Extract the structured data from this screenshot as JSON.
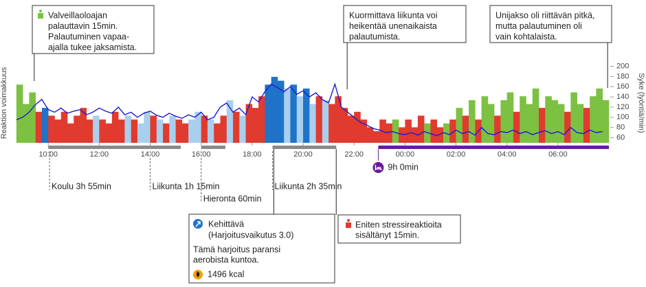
{
  "chart_data": {
    "type": "line",
    "y_label": "Reaktion voimakkuus",
    "y2_label": "Syke (lyöntiä/min)",
    "xlim": [
      8.7,
      32.0
    ],
    "xticks": [
      {
        "value": 10,
        "label": "10:00"
      },
      {
        "value": 12,
        "label": "12:00"
      },
      {
        "value": 14,
        "label": "14:00"
      },
      {
        "value": 16,
        "label": "16:00"
      },
      {
        "value": 18,
        "label": "18:00"
      },
      {
        "value": 20,
        "label": "20:00"
      },
      {
        "value": 22,
        "label": "22:00"
      },
      {
        "value": 24,
        "label": "00:00"
      },
      {
        "value": 26,
        "label": "02:00"
      },
      {
        "value": 28,
        "label": "04:00"
      },
      {
        "value": 30,
        "label": "06:00"
      }
    ],
    "ylim": [
      0,
      1
    ],
    "y2lim": [
      50,
      202
    ],
    "y2ticks": [
      60,
      80,
      100,
      120,
      140,
      160,
      180,
      200
    ],
    "x": [
      8.75,
      9.0,
      9.25,
      9.5,
      9.75,
      10.0,
      10.25,
      10.5,
      10.75,
      11.0,
      11.25,
      11.5,
      11.75,
      12.0,
      12.25,
      12.5,
      12.75,
      13.0,
      13.25,
      13.5,
      13.75,
      14.0,
      14.25,
      14.5,
      14.75,
      15.0,
      15.25,
      15.5,
      15.75,
      16.0,
      16.25,
      16.5,
      16.75,
      17.0,
      17.25,
      17.5,
      17.75,
      18.0,
      18.25,
      18.5,
      18.75,
      19.0,
      19.25,
      19.5,
      19.75,
      20.0,
      20.25,
      20.5,
      20.75,
      21.0,
      21.25,
      21.5,
      21.75,
      22.0,
      22.25,
      22.5,
      22.75,
      23.0,
      23.25,
      23.5,
      23.75,
      24.0,
      24.25,
      24.5,
      24.75,
      25.0,
      25.25,
      25.5,
      25.75,
      26.0,
      26.25,
      26.5,
      26.75,
      27.0,
      27.25,
      27.5,
      27.75,
      28.0,
      28.25,
      28.5,
      28.75,
      29.0,
      29.25,
      29.5,
      29.75,
      30.0,
      30.25,
      30.5,
      30.75,
      31.0,
      31.25,
      31.5,
      31.75
    ],
    "bar_width": 0.25,
    "bars": {
      "values": [
        0.75,
        0.5,
        0.65,
        0.4,
        0.45,
        0.35,
        0.3,
        0.4,
        0.25,
        0.35,
        0.45,
        0.3,
        0.35,
        0.3,
        0.25,
        0.4,
        0.3,
        0.35,
        0.3,
        0.25,
        0.4,
        0.35,
        0.3,
        0.25,
        0.35,
        0.3,
        0.25,
        0.3,
        0.4,
        0.35,
        0.3,
        0.25,
        0.35,
        0.55,
        0.4,
        0.35,
        0.5,
        0.45,
        0.6,
        0.75,
        0.85,
        0.8,
        0.7,
        0.75,
        0.6,
        0.7,
        0.5,
        0.6,
        0.55,
        0.5,
        0.6,
        0.45,
        0.35,
        0.4,
        0.3,
        0.2,
        0.15,
        0.3,
        0.25,
        0.3,
        0.2,
        0.3,
        0.2,
        0.35,
        0.25,
        0.3,
        0.2,
        0.25,
        0.3,
        0.45,
        0.35,
        0.55,
        0.3,
        0.6,
        0.5,
        0.35,
        0.55,
        0.65,
        0.4,
        0.6,
        0.5,
        0.7,
        0.45,
        0.6,
        0.55,
        0.5,
        0.4,
        0.65,
        0.5,
        0.45,
        0.6,
        0.7,
        0.55
      ],
      "colors": [
        "#7cc142",
        "#7cc142",
        "#7cc142",
        "#e03b2e",
        "#1f73c9",
        "#e03b2e",
        "#e03b2e",
        "#e03b2e",
        "#e03b2e",
        "#e03b2e",
        "#e03b2e",
        "#e03b2e",
        "#a9cfee",
        "#e03b2e",
        "#e03b2e",
        "#e03b2e",
        "#e03b2e",
        "#a9cfee",
        "#e03b2e",
        "#a9cfee",
        "#a9cfee",
        "#e03b2e",
        "#a9cfee",
        "#e03b2e",
        "#a9cfee",
        "#e03b2e",
        "#e03b2e",
        "#a9cfee",
        "#a9cfee",
        "#e03b2e",
        "#a9cfee",
        "#e03b2e",
        "#e03b2e",
        "#a9cfee",
        "#e03b2e",
        "#a9cfee",
        "#e03b2e",
        "#e03b2e",
        "#e03b2e",
        "#1f73c9",
        "#1f73c9",
        "#1f73c9",
        "#a9cfee",
        "#1f73c9",
        "#a9cfee",
        "#1f73c9",
        "#a9cfee",
        "#e03b2e",
        "#a9cfee",
        "#e03b2e",
        "#e03b2e",
        "#e03b2e",
        "#e03b2e",
        "#e03b2e",
        "#e03b2e",
        "#e03b2e",
        "#e03b2e",
        "#e03b2e",
        "#e03b2e",
        "#7cc142",
        "#e03b2e",
        "#e03b2e",
        "#e03b2e",
        "#e03b2e",
        "#7cc142",
        "#e03b2e",
        "#e03b2e",
        "#7cc142",
        "#e03b2e",
        "#7cc142",
        "#e03b2e",
        "#7cc142",
        "#e03b2e",
        "#7cc142",
        "#7cc142",
        "#e03b2e",
        "#7cc142",
        "#7cc142",
        "#e03b2e",
        "#7cc142",
        "#7cc142",
        "#7cc142",
        "#e03b2e",
        "#7cc142",
        "#7cc142",
        "#7cc142",
        "#e03b2e",
        "#7cc142",
        "#7cc142",
        "#e03b2e",
        "#7cc142",
        "#7cc142",
        "#7cc142"
      ]
    },
    "series": [
      {
        "color": "#1b1bd0",
        "axis": "y2",
        "values": [
          95,
          100,
          110,
          125,
          135,
          115,
          110,
          118,
          108,
          112,
          115,
          105,
          110,
          118,
          112,
          108,
          120,
          105,
          110,
          100,
          108,
          112,
          104,
          100,
          108,
          102,
          98,
          105,
          100,
          110,
          95,
          100,
          120,
          128,
          110,
          118,
          105,
          140,
          130,
          150,
          165,
          158,
          150,
          160,
          145,
          152,
          140,
          148,
          135,
          128,
          165,
          120,
          110,
          100,
          90,
          85,
          78,
          75,
          70,
          72,
          68,
          66,
          70,
          65,
          72,
          68,
          64,
          70,
          66,
          75,
          68,
          72,
          65,
          80,
          68,
          66,
          72,
          70,
          75,
          68,
          72,
          66,
          70,
          74,
          68,
          72,
          66,
          80,
          70,
          68,
          75,
          70,
          72
        ]
      }
    ],
    "periods": [
      {
        "start": 10.0,
        "end": 15.2,
        "color": "#8a8a8a"
      },
      {
        "start": 16.0,
        "end": 16.95,
        "color": "#8a8a8a"
      },
      {
        "start": 18.8,
        "end": 21.3,
        "color": "#8a8a8a"
      },
      {
        "start": 22.95,
        "end": 32.0,
        "color": "#6a1b9a"
      }
    ],
    "sleep_label": "9h 0min",
    "activities": [
      {
        "label": "Koulu 3h 55min",
        "time": 10.05
      },
      {
        "label": "Liikunta 1h 15min",
        "time": 14.0
      },
      {
        "label": "Hieronta 60min",
        "time": 16.0
      },
      {
        "label": "Liikunta 2h 35min",
        "time": 18.8
      }
    ],
    "callouts": [
      {
        "lines": [
          "Valveillaoloajan",
          "palauttavin 15min.",
          "Palautuminen vapaa-",
          "ajalla tukee jaksamista."
        ],
        "time": 9.45
      },
      {
        "lines": [
          "Kuormittava liikunta voi",
          "heikentää unenaikaista",
          "palautumista."
        ],
        "time": 21.73
      },
      {
        "lines": [
          "Unijakso oli riittävän pitkä,",
          "mutta palautuminen oli",
          "vain kohtalaista."
        ],
        "time": 31.95
      }
    ],
    "exercise": {
      "title": "Kehittävä",
      "subtitle": "(Harjoitusvaikutus 3.0)",
      "text": [
        "Tämä harjoitus paransi",
        "aerobista kuntoa."
      ],
      "kcal": "1496 kcal",
      "time": 18.85
    },
    "stress": {
      "lines": [
        "Eniten stressireaktioita",
        "sisältänyt 15min."
      ],
      "time": 21.3
    }
  }
}
